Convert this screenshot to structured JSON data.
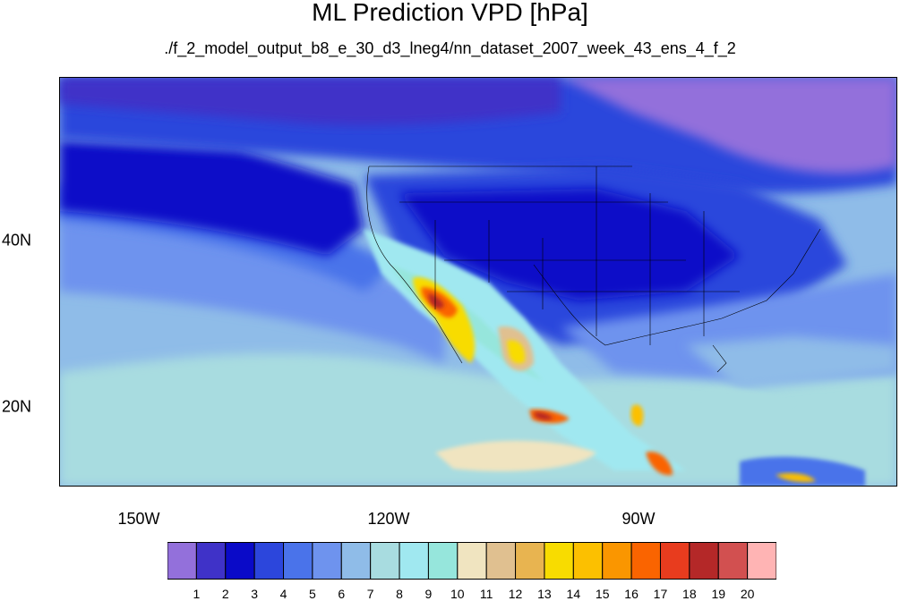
{
  "title": "ML Prediction VPD [hPa]",
  "subtitle": "./f_2_model_output_b8_e_30_d3_lneg4/nn_dataset_2007_week_43_ens_4_f_2",
  "axes": {
    "lon_ticks": [
      {
        "value": -150,
        "label": "150W"
      },
      {
        "value": -120,
        "label": "120W"
      },
      {
        "value": -90,
        "label": "90W"
      }
    ],
    "lat_ticks": [
      {
        "value": 40,
        "label": "40N"
      },
      {
        "value": 20,
        "label": "20N"
      }
    ],
    "lon_range": [
      -160,
      -64
    ],
    "lat_range": [
      11,
      59
    ]
  },
  "legend": {
    "levels": [
      "1",
      "2",
      "3",
      "4",
      "5",
      "6",
      "7",
      "8",
      "9",
      "10",
      "11",
      "12",
      "13",
      "14",
      "15",
      "16",
      "17",
      "18",
      "19",
      "20"
    ],
    "colors": [
      "#9370db",
      "#3f32c8",
      "#0a0ac8",
      "#2c46dc",
      "#4a73ea",
      "#6e93ee",
      "#8fbce8",
      "#a8dce0",
      "#a0e8f0",
      "#96e6dc",
      "#f0e4c0",
      "#e0c090",
      "#e8b450",
      "#f8dc00",
      "#fcc000",
      "#fa9600",
      "#fa6400",
      "#e83c1e",
      "#b42828",
      "#d25050",
      "#ffb4b4"
    ]
  }
}
